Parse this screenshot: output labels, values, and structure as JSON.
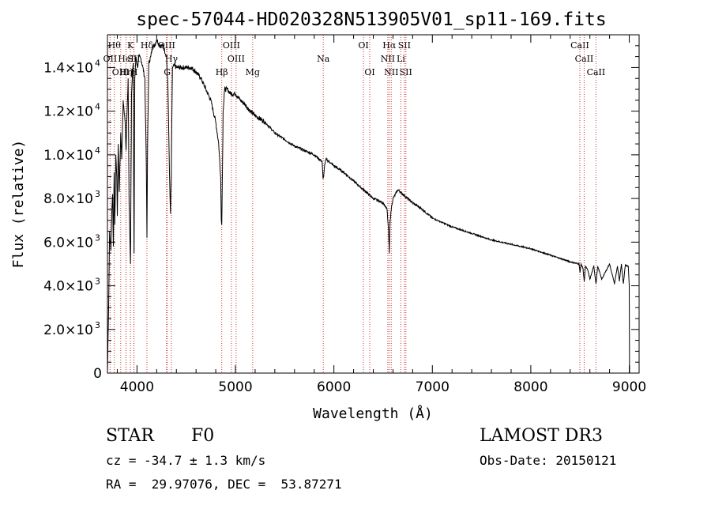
{
  "chart_data": {
    "type": "line",
    "title": "spec-57044-HD020328N513905V01_sp11-169.fits",
    "xlabel": "Wavelength (Å)",
    "ylabel": "Flux (relative)",
    "xlim": [
      3700,
      9100
    ],
    "ylim": [
      0,
      15500
    ],
    "x_ticks": [
      4000,
      5000,
      6000,
      7000,
      8000,
      9000
    ],
    "y_ticks": [
      {
        "value": 0,
        "mantissa": "0",
        "exp": ""
      },
      {
        "value": 2000,
        "mantissa": "2.0×10",
        "exp": "3"
      },
      {
        "value": 4000,
        "mantissa": "4.0×10",
        "exp": "3"
      },
      {
        "value": 6000,
        "mantissa": "6.0×10",
        "exp": "3"
      },
      {
        "value": 8000,
        "mantissa": "8.0×10",
        "exp": "3"
      },
      {
        "value": 10000,
        "mantissa": "1.0×10",
        "exp": "4"
      },
      {
        "value": 12000,
        "mantissa": "1.2×10",
        "exp": "4"
      },
      {
        "value": 14000,
        "mantissa": "1.4×10",
        "exp": "4"
      }
    ],
    "series": [
      {
        "name": "spectrum",
        "x": [
          3700,
          3712,
          3722,
          3735,
          3745,
          3752,
          3760,
          3768,
          3775,
          3785,
          3795,
          3800,
          3810,
          3820,
          3835,
          3845,
          3860,
          3880,
          3889,
          3900,
          3910,
          3920,
          3934,
          3945,
          3955,
          3962,
          3970,
          3978,
          3990,
          4005,
          4020,
          4040,
          4060,
          4080,
          4095,
          4101,
          4108,
          4120,
          4140,
          4160,
          4180,
          4200,
          4220,
          4240,
          4260,
          4280,
          4300,
          4315,
          4330,
          4340,
          4348,
          4360,
          4380,
          4400,
          4420,
          4450,
          4500,
          4550,
          4600,
          4650,
          4700,
          4750,
          4800,
          4830,
          4850,
          4856,
          4861,
          4866,
          4875,
          4890,
          4920,
          4950,
          5000,
          5050,
          5100,
          5150,
          5200,
          5300,
          5400,
          5500,
          5600,
          5700,
          5800,
          5880,
          5890,
          5896,
          5905,
          5920,
          6000,
          6100,
          6200,
          6300,
          6400,
          6500,
          6540,
          6555,
          6563,
          6571,
          6585,
          6600,
          6650,
          6700,
          6800,
          6900,
          7000,
          7200,
          7400,
          7600,
          7800,
          8000,
          8200,
          8400,
          8490,
          8500,
          8510,
          8530,
          8542,
          8555,
          8580,
          8600,
          8640,
          8662,
          8680,
          8720,
          8800,
          8850,
          8880,
          8900,
          8920,
          8940,
          8960,
          8990,
          9000,
          9003
        ],
        "y": [
          0,
          3000,
          6500,
          5600,
          7500,
          8200,
          5800,
          9200,
          6800,
          10000,
          9000,
          7200,
          10500,
          8300,
          11000,
          9800,
          12500,
          11500,
          10200,
          12000,
          13500,
          7800,
          5000,
          12800,
          13800,
          14200,
          5500,
          13500,
          14500,
          14000,
          14500,
          14400,
          14000,
          13500,
          9500,
          6200,
          10500,
          14200,
          14500,
          15000,
          15000,
          15300,
          15100,
          15000,
          15000,
          14800,
          14500,
          13000,
          9200,
          7300,
          9000,
          14000,
          14100,
          14000,
          14000,
          14000,
          14000,
          14000,
          13800,
          13500,
          13000,
          12500,
          11500,
          10500,
          9000,
          7000,
          6800,
          8500,
          12000,
          13000,
          13000,
          12800,
          12800,
          12500,
          12300,
          12000,
          11800,
          11500,
          11000,
          10700,
          10400,
          10200,
          10000,
          9700,
          8900,
          9000,
          9500,
          9800,
          9500,
          9200,
          8800,
          8400,
          8000,
          7800,
          7500,
          6500,
          5500,
          7000,
          7600,
          8000,
          8400,
          8200,
          7800,
          7500,
          7100,
          6700,
          6400,
          6100,
          5900,
          5700,
          5400,
          5100,
          5000,
          4600,
          5000,
          4800,
          4200,
          4900,
          4700,
          4300,
          4900,
          4100,
          4900,
          4300,
          5000,
          4100,
          4900,
          4200,
          5000,
          4100,
          4950,
          4900,
          4000,
          0
        ]
      }
    ],
    "lines": [
      {
        "row": 1,
        "x": 3770,
        "label": "Hθ"
      },
      {
        "row": 1,
        "x": 3934,
        "label": "K"
      },
      {
        "row": 1,
        "x": 4101,
        "label": "Hδ"
      },
      {
        "row": 1,
        "x": 4300,
        "label": "OIII"
      },
      {
        "row": 1,
        "x": 4959,
        "label": "OIII"
      },
      {
        "row": 1,
        "x": 6300,
        "label": "OI"
      },
      {
        "row": 1,
        "x": 6563,
        "label": "Hα"
      },
      {
        "row": 1,
        "x": 6716,
        "label": "SII"
      },
      {
        "row": 1,
        "x": 8498,
        "label": "CaII"
      },
      {
        "row": 2,
        "x": 3727,
        "label": "OII"
      },
      {
        "row": 2,
        "x": 3888,
        "label": "HeI"
      },
      {
        "row": 2,
        "x": 3968,
        "label": "SII"
      },
      {
        "row": 2,
        "x": 4350,
        "label": "Hγ"
      },
      {
        "row": 2,
        "x": 5007,
        "label": "OIII"
      },
      {
        "row": 2,
        "x": 5892,
        "label": "Na"
      },
      {
        "row": 2,
        "x": 6548,
        "label": "NII"
      },
      {
        "row": 2,
        "x": 6680,
        "label": "Li"
      },
      {
        "row": 2,
        "x": 8542,
        "label": "CaII"
      },
      {
        "row": 3,
        "x": 3835,
        "label": "OIII"
      },
      {
        "row": 3,
        "x": 3889,
        "label": "Hη"
      },
      {
        "row": 3,
        "x": 3970,
        "label": "H"
      },
      {
        "row": 3,
        "x": 4307,
        "label": "G"
      },
      {
        "row": 3,
        "x": 4861,
        "label": "Hβ"
      },
      {
        "row": 3,
        "x": 5175,
        "label": "Mg"
      },
      {
        "row": 3,
        "x": 6364,
        "label": "OI"
      },
      {
        "row": 3,
        "x": 6583,
        "label": "NII"
      },
      {
        "row": 3,
        "x": 6731,
        "label": "SII"
      },
      {
        "row": 3,
        "x": 8662,
        "label": "CaII"
      }
    ]
  },
  "info": {
    "object_class": "STAR",
    "subclass": "F0",
    "survey": "LAMOST DR3",
    "cz": "cz = -34.7 ± 1.3 km/s",
    "obs_date": "Obs-Date: 20150121",
    "coords": "RA =  29.97076, DEC =  53.87271"
  }
}
